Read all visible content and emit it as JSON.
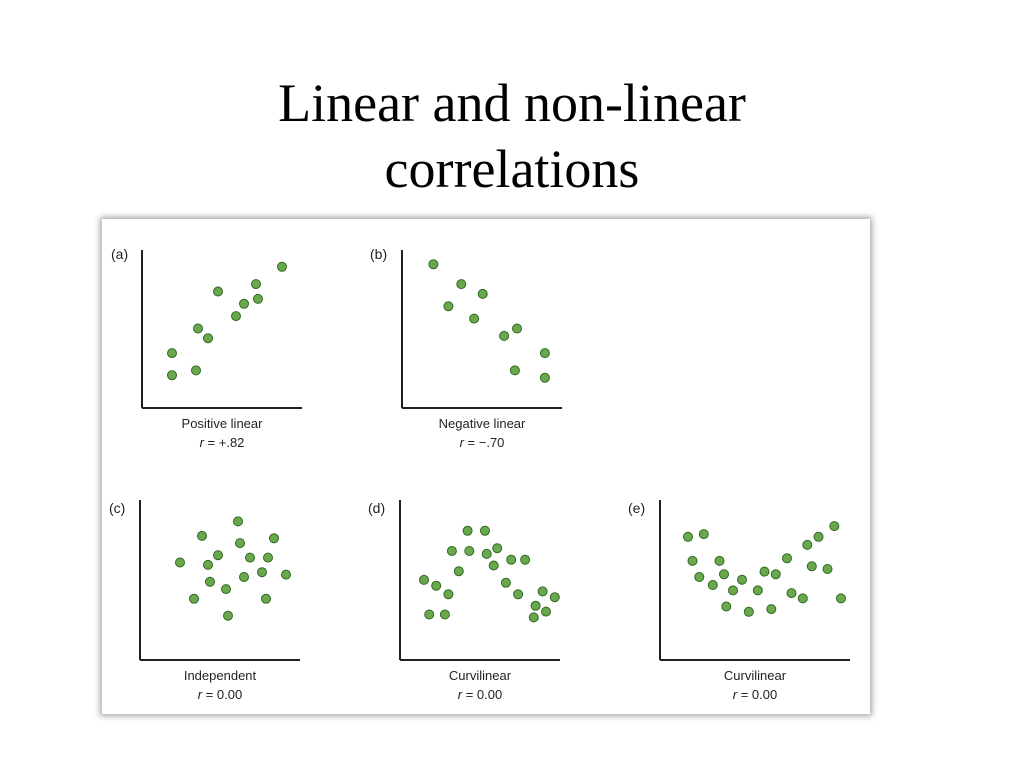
{
  "title": {
    "line1": "Linear and non-linear",
    "line2": "correlations"
  },
  "colors": {
    "point_fill": "#6aa84f",
    "point_stroke": "#2f6a1e",
    "axis": "#231f20"
  },
  "chart_data": [
    {
      "type": "scatter",
      "panel_label": "(a)",
      "caption": "Positive linear",
      "r_label": "r",
      "r_value": " = +.82",
      "x": [
        1,
        1,
        2.2,
        2.3,
        2.8,
        3.3,
        4.2,
        4.6,
        5.2,
        5.3,
        6.5
      ],
      "y": [
        1,
        1.9,
        1.2,
        2.9,
        2.5,
        4.4,
        3.4,
        3.9,
        4.7,
        4.1,
        5.4
      ]
    },
    {
      "type": "scatter",
      "panel_label": "(b)",
      "caption": "Negative linear",
      "r_label": "r",
      "r_value": " = −.70",
      "x": [
        1,
        1.7,
        2.3,
        2.9,
        3.3,
        4.3,
        4.8,
        4.9,
        6.2,
        6.2
      ],
      "y": [
        5.5,
        3.8,
        4.7,
        3.3,
        4.3,
        2.6,
        1.2,
        2.9,
        1.9,
        0.9
      ]
    },
    {
      "type": "scatter",
      "panel_label": "(c)",
      "caption": "Independent",
      "r_label": "r",
      "r_value": " = 0.00",
      "x": [
        1.5,
        2.2,
        2.6,
        2.9,
        3.0,
        3.4,
        3.8,
        3.9,
        4.4,
        4.5,
        4.7,
        5.0,
        5.6,
        5.8,
        5.9,
        6.2,
        6.8
      ],
      "y": [
        3.7,
        2.2,
        4.8,
        3.6,
        2.9,
        4.0,
        2.6,
        1.5,
        5.4,
        4.5,
        3.1,
        3.9,
        3.3,
        2.2,
        3.9,
        4.7,
        3.2
      ]
    },
    {
      "type": "scatter",
      "panel_label": "(d)",
      "caption": "Curvilinear",
      "r_label": "r",
      "r_value": " = 0.00",
      "x": [
        0.8,
        1.1,
        1.5,
        2.0,
        2.2,
        2.4,
        2.8,
        3.3,
        3.4,
        4.3,
        4.4,
        4.8,
        5.0,
        5.5,
        5.8,
        6.2,
        6.6,
        7.1,
        7.2,
        7.6,
        7.8,
        8.3
      ],
      "y": [
        2.5,
        1.3,
        2.3,
        1.3,
        2.0,
        3.5,
        2.8,
        4.2,
        3.5,
        4.2,
        3.4,
        3.0,
        3.6,
        2.4,
        3.2,
        2.0,
        3.2,
        1.2,
        1.6,
        2.1,
        1.4,
        1.9
      ],
      "jitter_note": ""
    },
    {
      "type": "scatter",
      "panel_label": "(e)",
      "caption": "Curvilinear",
      "r_label": "r",
      "r_value": " = 0.00",
      "x": [
        0.8,
        1.0,
        1.3,
        1.5,
        1.9,
        2.2,
        2.4,
        2.5,
        2.8,
        3.2,
        3.5,
        3.9,
        4.2,
        4.5,
        4.7,
        5.2,
        5.4,
        5.9,
        6.1,
        6.3,
        6.6,
        7.0,
        7.3,
        7.6
      ],
      "y": [
        4.3,
        3.4,
        2.8,
        4.4,
        2.5,
        3.4,
        2.9,
        1.7,
        2.3,
        2.7,
        1.5,
        2.3,
        3.0,
        1.6,
        2.9,
        3.5,
        2.2,
        2.0,
        4.0,
        3.2,
        4.3,
        3.1,
        4.7,
        2.0
      ]
    }
  ]
}
